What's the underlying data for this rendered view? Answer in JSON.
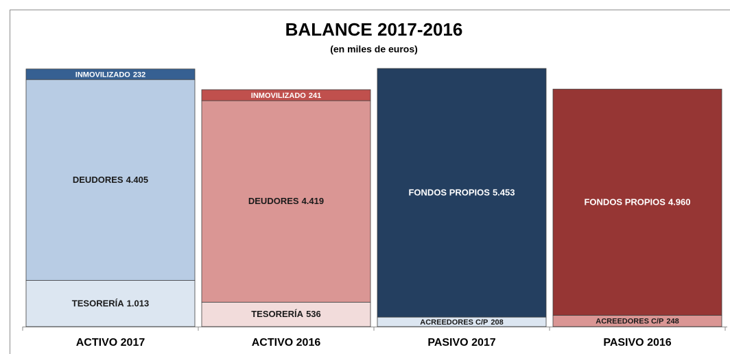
{
  "chart_data": {
    "type": "bar",
    "stacked": true,
    "title": "BALANCE 2017-2016",
    "subtitle": "(en miles de euros)",
    "categories": [
      "ACTIVO 2017",
      "ACTIVO 2016",
      "PASIVO 2017",
      "PASIVO 2016"
    ],
    "series": [
      {
        "name": "TESORERÍA",
        "values": [
          1013,
          536,
          null,
          null
        ],
        "value_labels": [
          "1.013",
          "536",
          null,
          null
        ],
        "colors": [
          "#dce6f1",
          "#f2dcdb",
          null,
          null
        ]
      },
      {
        "name": "DEUDORES",
        "values": [
          4405,
          4419,
          null,
          null
        ],
        "value_labels": [
          "4.405",
          "4.419",
          null,
          null
        ],
        "colors": [
          "#b8cce4",
          "#da9694",
          null,
          null
        ]
      },
      {
        "name": "INMOVILIZADO",
        "values": [
          232,
          241,
          null,
          null
        ],
        "value_labels": [
          "232",
          "241",
          null,
          null
        ],
        "colors": [
          "#366092",
          "#c0504d",
          null,
          null
        ]
      },
      {
        "name": "ACREEDORES C/P",
        "values": [
          null,
          null,
          208,
          248
        ],
        "value_labels": [
          null,
          null,
          "208",
          "248"
        ],
        "colors": [
          null,
          null,
          "#dce6f1",
          "#da9694"
        ]
      },
      {
        "name": "FONDOS PROPIOS",
        "values": [
          null,
          null,
          5453,
          4960
        ],
        "value_labels": [
          null,
          null,
          "5.453",
          "4.960"
        ],
        "colors": [
          null,
          null,
          "#243f60",
          "#963634"
        ]
      }
    ]
  }
}
